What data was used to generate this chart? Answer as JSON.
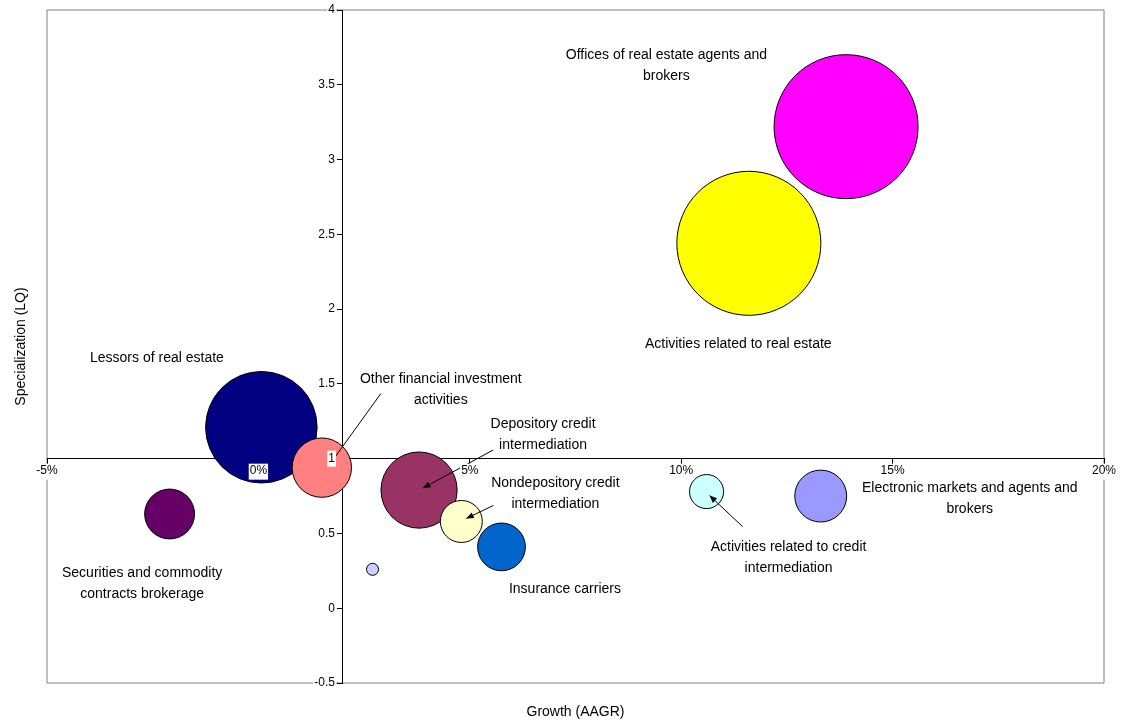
{
  "chart_data": {
    "type": "bubble",
    "xlabel": "Growth (AAGR)",
    "ylabel": "Specialization (LQ)",
    "xlim": [
      -5,
      20
    ],
    "xticks": [
      {
        "value": -5,
        "label": "-5%"
      },
      {
        "value": 0,
        "label": "0%"
      },
      {
        "value": 5,
        "label": "5%"
      },
      {
        "value": 10,
        "label": "10%"
      },
      {
        "value": 15,
        "label": "15%"
      },
      {
        "value": 20,
        "label": "20%"
      }
    ],
    "ylim": [
      -0.5,
      4
    ],
    "yticks": [
      -0.5,
      0,
      0.5,
      1,
      1.5,
      2,
      2.5,
      3,
      3.5,
      4
    ],
    "grid": false,
    "legend": false,
    "series": [
      {
        "x": [
          13.9,
          11.6,
          0.07,
          1.5,
          3.8,
          4.8,
          5.75,
          -2.1,
          10.6,
          13.3,
          2.7
        ],
        "values": [
          3.22,
          2.44,
          1.21,
          0.94,
          0.79,
          0.58,
          0.41,
          0.63,
          0.78,
          0.75,
          0.26
        ],
        "sizes": [
          1,
          1,
          0.6,
          0.17,
          0.28,
          0.085,
          0.11,
          0.12,
          0.056,
          0.13,
          0.007
        ],
        "colors": [
          "#ff00ff",
          "#ffff00",
          "#000080",
          "#ff8080",
          "#993366",
          "#ffffcc",
          "#0066cc",
          "#660066",
          "#ccffff",
          "#9999ff",
          "#ccccff"
        ]
      }
    ],
    "annotations": [
      "Offices of real estate agents and brokers",
      "Activities related to real estate",
      "Lessors of real estate",
      {
        "text": "Other financial investment activities",
        "x": 1.5,
        "y": 0.94
      },
      {
        "text": "Depository credit intermediation",
        "x": 3.8,
        "y": 0.79
      },
      {
        "text": "Nondepository credit intermediation",
        "x": 4.8,
        "y": 0.58
      },
      "Insurance carriers",
      "Securities and commodity contracts brokerage",
      {
        "text": "Activities related to credit intermediation",
        "x": 10.6,
        "y": 0.78
      },
      "Electronic markets and agents and brokers"
    ]
  }
}
